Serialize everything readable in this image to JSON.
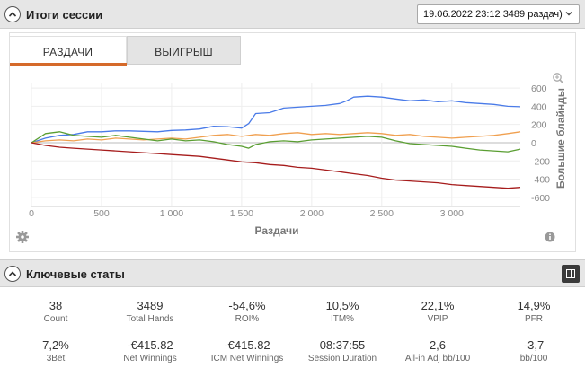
{
  "header": {
    "title": "Итоги сессии",
    "session_select": "19.06.2022 23:12 3489 раздач)"
  },
  "tabs": [
    {
      "label": "РАЗДАЧИ",
      "active": true
    },
    {
      "label": "ВЫИГРЫШ",
      "active": false
    }
  ],
  "chart_data": {
    "type": "line",
    "xlabel": "Раздачи",
    "ylabel": "Большие блайнды",
    "xlim": [
      0,
      3489
    ],
    "ylim": [
      -700,
      650
    ],
    "x_ticks": [
      "0",
      "500",
      "1 000",
      "1 500",
      "2 000",
      "2 500",
      "3 000"
    ],
    "x_tick_values": [
      0,
      500,
      1000,
      1500,
      2000,
      2500,
      3000
    ],
    "y_ticks": [
      "600",
      "400",
      "200",
      "0",
      "-200",
      "-400",
      "-600"
    ],
    "y_tick_values": [
      600,
      400,
      200,
      0,
      -200,
      -400,
      -600
    ],
    "series": [
      {
        "color": "#4a7be8",
        "x": [
          0,
          100,
          200,
          300,
          400,
          500,
          600,
          700,
          800,
          900,
          1000,
          1100,
          1200,
          1300,
          1400,
          1500,
          1550,
          1600,
          1700,
          1800,
          1900,
          2000,
          2100,
          2200,
          2250,
          2300,
          2400,
          2500,
          2600,
          2700,
          2800,
          2900,
          3000,
          3100,
          3200,
          3300,
          3400,
          3489
        ],
        "y": [
          0,
          50,
          80,
          90,
          120,
          120,
          130,
          130,
          125,
          120,
          135,
          140,
          150,
          180,
          175,
          160,
          210,
          320,
          330,
          380,
          390,
          400,
          410,
          430,
          460,
          500,
          510,
          500,
          480,
          460,
          470,
          450,
          460,
          440,
          430,
          420,
          400,
          395
        ]
      },
      {
        "color": "#f0a050",
        "x": [
          0,
          100,
          200,
          300,
          400,
          500,
          600,
          700,
          800,
          900,
          1000,
          1100,
          1200,
          1300,
          1400,
          1500,
          1600,
          1700,
          1800,
          1900,
          2000,
          2100,
          2200,
          2300,
          2400,
          2500,
          2600,
          2700,
          2800,
          2900,
          3000,
          3100,
          3200,
          3300,
          3400,
          3489
        ],
        "y": [
          0,
          20,
          30,
          20,
          40,
          30,
          50,
          40,
          30,
          40,
          50,
          40,
          60,
          80,
          90,
          70,
          90,
          80,
          100,
          110,
          90,
          100,
          90,
          100,
          110,
          100,
          80,
          90,
          70,
          60,
          50,
          60,
          70,
          80,
          100,
          120
        ]
      },
      {
        "color": "#5a9e32",
        "x": [
          0,
          100,
          200,
          300,
          400,
          500,
          600,
          700,
          800,
          900,
          1000,
          1100,
          1200,
          1300,
          1400,
          1500,
          1550,
          1600,
          1700,
          1800,
          1900,
          2000,
          2100,
          2200,
          2300,
          2400,
          2500,
          2600,
          2700,
          2800,
          2900,
          3000,
          3100,
          3200,
          3300,
          3400,
          3489
        ],
        "y": [
          0,
          100,
          120,
          80,
          70,
          60,
          80,
          60,
          40,
          20,
          40,
          20,
          30,
          10,
          -20,
          -40,
          -60,
          -20,
          10,
          20,
          10,
          30,
          40,
          50,
          60,
          70,
          60,
          20,
          -10,
          -20,
          -30,
          -40,
          -60,
          -80,
          -90,
          -100,
          -70
        ]
      },
      {
        "color": "#a61c1c",
        "x": [
          0,
          100,
          200,
          300,
          400,
          500,
          600,
          700,
          800,
          900,
          1000,
          1100,
          1200,
          1300,
          1400,
          1500,
          1600,
          1700,
          1800,
          1900,
          2000,
          2100,
          2200,
          2300,
          2400,
          2500,
          2600,
          2700,
          2800,
          2900,
          3000,
          3100,
          3200,
          3300,
          3400,
          3489
        ],
        "y": [
          0,
          -30,
          -50,
          -60,
          -70,
          -80,
          -90,
          -100,
          -110,
          -120,
          -130,
          -140,
          -150,
          -170,
          -190,
          -210,
          -220,
          -240,
          -250,
          -270,
          -280,
          -300,
          -320,
          -340,
          -360,
          -390,
          -410,
          -420,
          -430,
          -440,
          -460,
          -470,
          -480,
          -490,
          -500,
          -490
        ]
      }
    ]
  },
  "stats_header": {
    "title": "Ключевые статы"
  },
  "stats": [
    {
      "value": "38",
      "label": "Count"
    },
    {
      "value": "3489",
      "label": "Total Hands"
    },
    {
      "value": "-54,6%",
      "label": "ROI%"
    },
    {
      "value": "10,5%",
      "label": "ITM%"
    },
    {
      "value": "22,1%",
      "label": "VPIP"
    },
    {
      "value": "14,9%",
      "label": "PFR"
    },
    {
      "value": "7,2%",
      "label": "3Bet"
    },
    {
      "value": "-€415.82",
      "label": "Net Winnings"
    },
    {
      "value": "-€415.82",
      "label": "ICM Net Winnings"
    },
    {
      "value": "08:37:55",
      "label": "Session Duration"
    },
    {
      "value": "2,6",
      "label": "All-in Adj bb/100"
    },
    {
      "value": "-3,7",
      "label": "bb/100"
    }
  ],
  "icons": {
    "collapse": "chevron-up-icon",
    "zoom": "zoom-icon",
    "settings": "gear-icon",
    "info": "info-icon",
    "layout": "layout-toggle-icon"
  }
}
